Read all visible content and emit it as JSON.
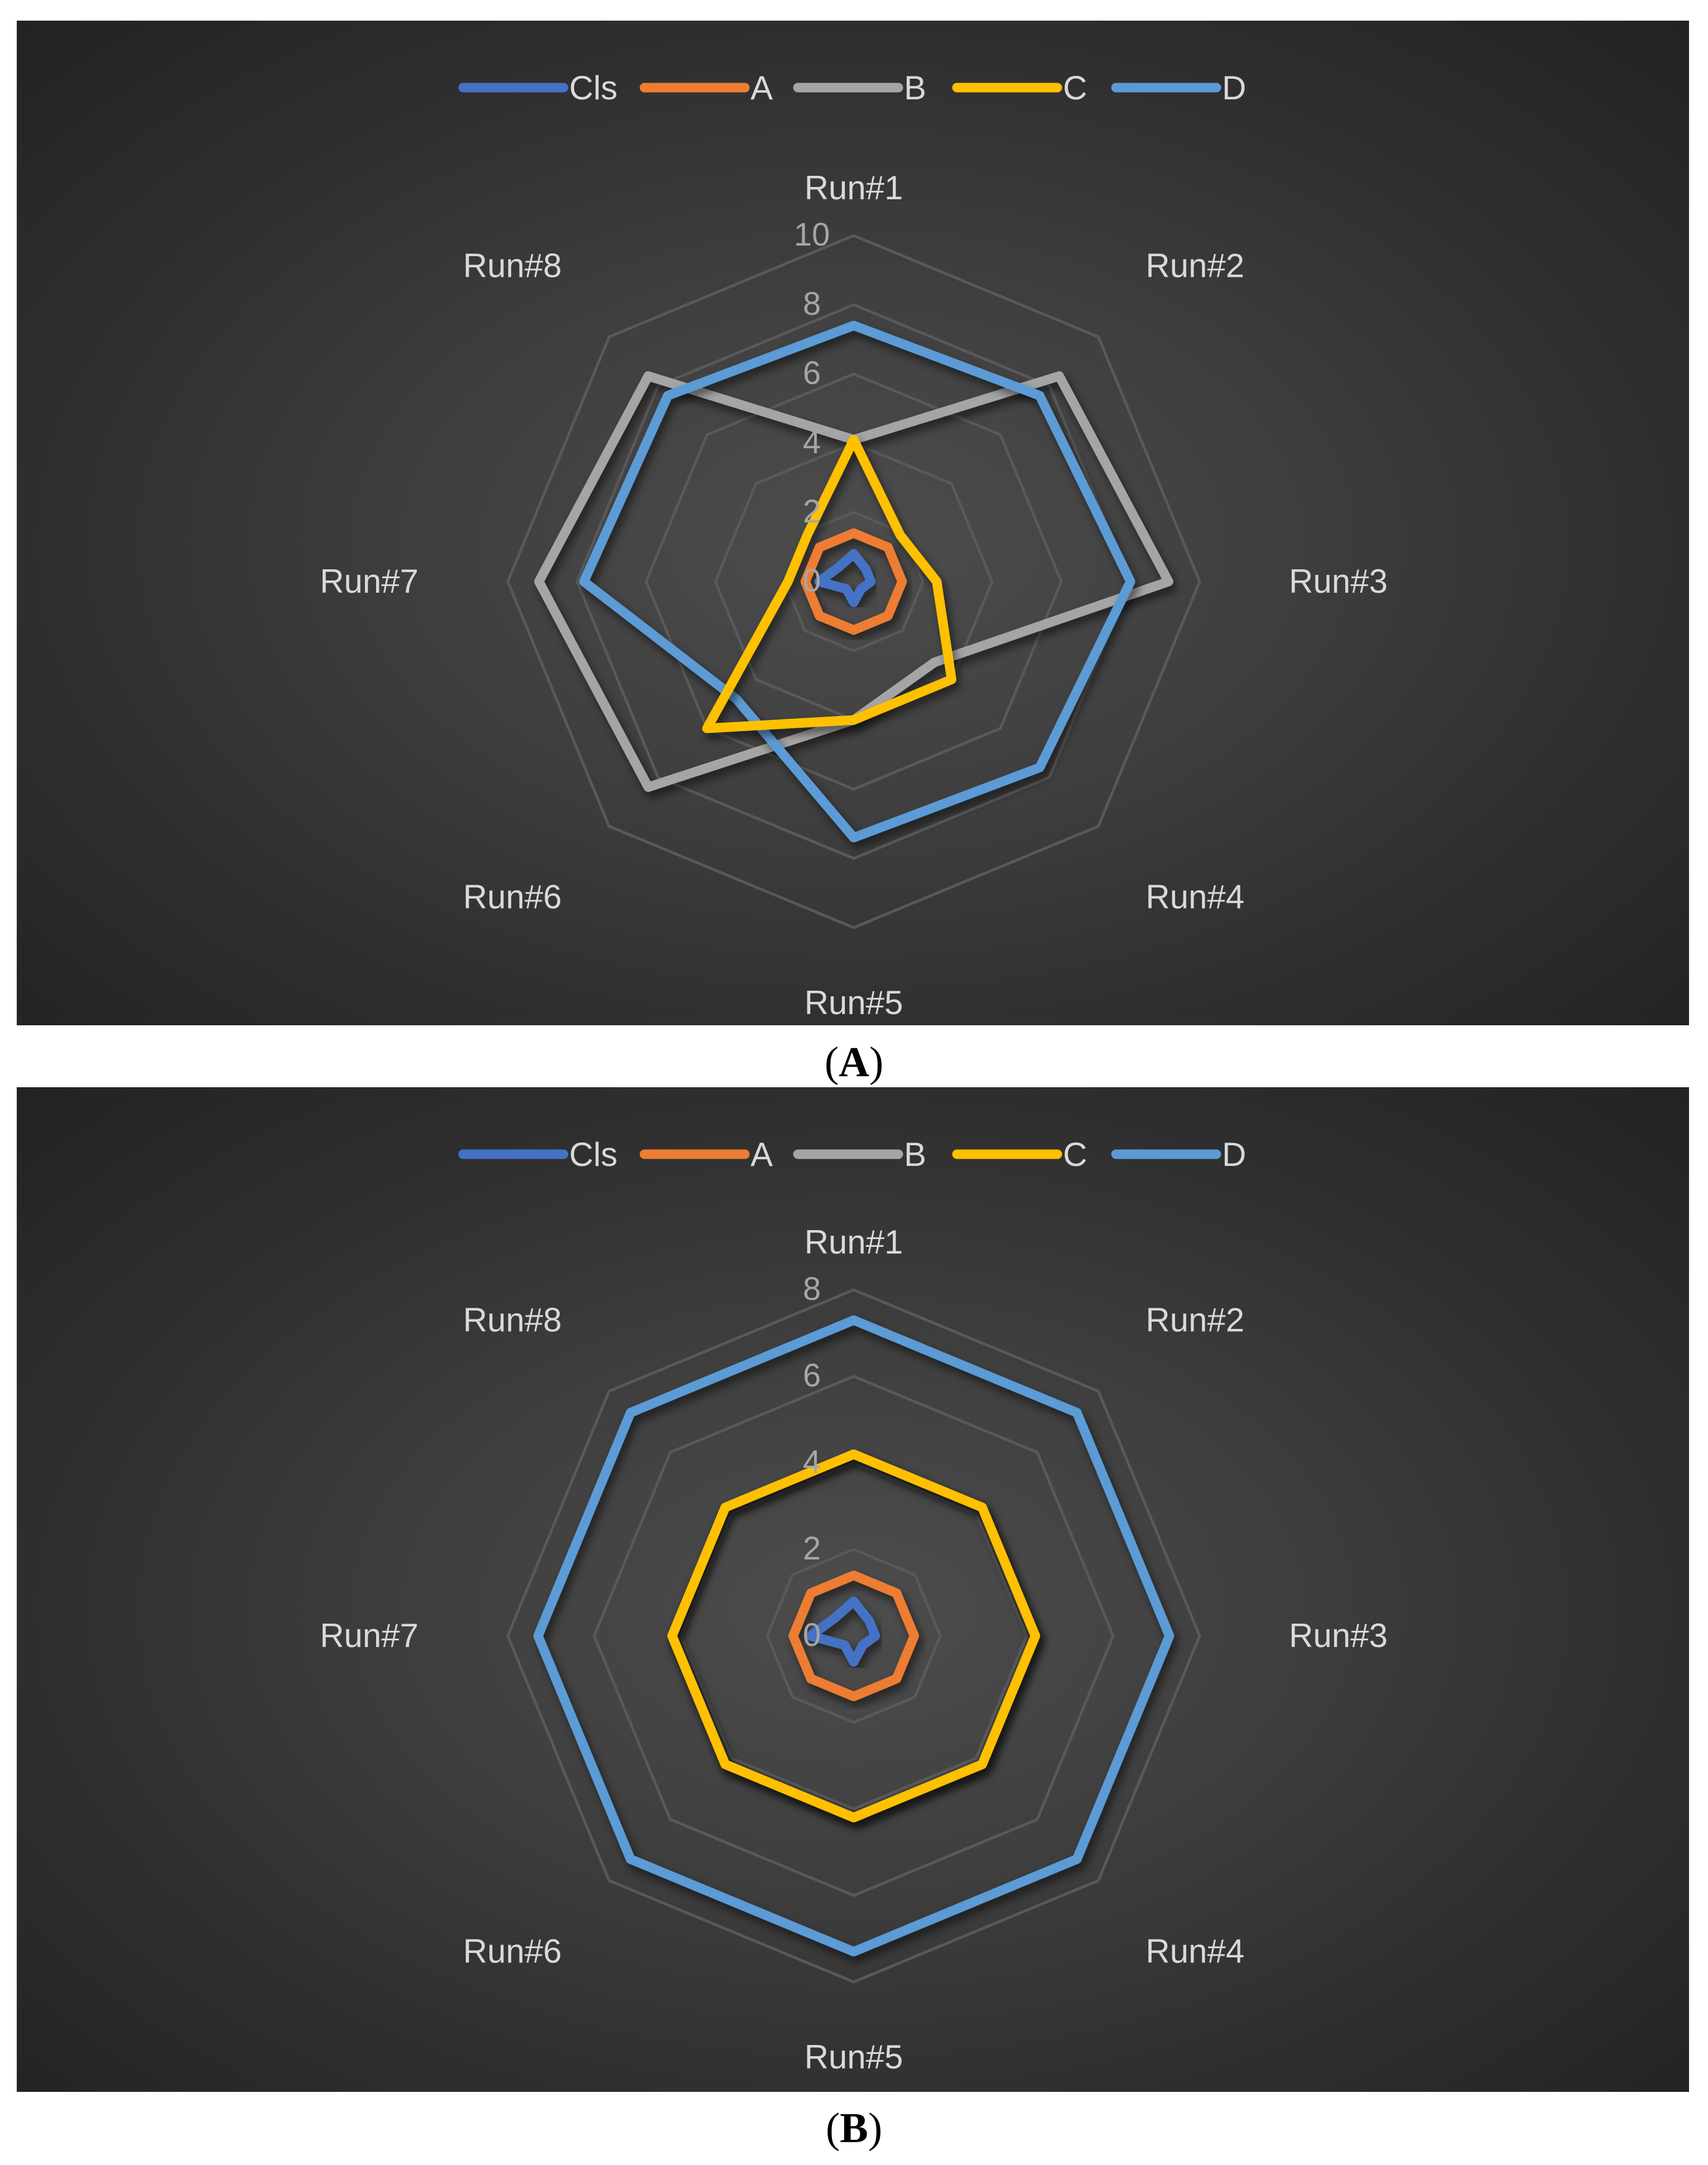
{
  "colors": {
    "Cls": "#4472c4",
    "A": "#ed7d31",
    "B": "#a5a5a5",
    "C": "#ffc000",
    "D": "#5b9bd5",
    "grid": "#595959",
    "text": "#d9d9d9",
    "tick_text": "#a6a6a6"
  },
  "captions": [
    {
      "open": "(",
      "letter": "A",
      "close": ")"
    },
    {
      "open": "(",
      "letter": "B",
      "close": ")"
    }
  ],
  "chart_data": [
    {
      "type": "radar",
      "categories": [
        "Run#1",
        "Run#2",
        "Run#3",
        "Run#4",
        "Run#5",
        "Run#6",
        "Run#7",
        "Run#8"
      ],
      "rlim": [
        0,
        10
      ],
      "ticks": [
        0,
        2,
        4,
        6,
        8,
        10
      ],
      "grid": true,
      "legend_position": "top",
      "series": [
        {
          "name": "Cls",
          "values": [
            0.8,
            0.5,
            0.5,
            0.3,
            0.6,
            0.3,
            1.0,
            0.6
          ]
        },
        {
          "name": "A",
          "values": [
            1.4,
            1.4,
            1.4,
            1.4,
            1.4,
            1.4,
            1.4,
            1.4
          ]
        },
        {
          "name": "B",
          "values": [
            4.1,
            8.4,
            9.1,
            3.3,
            4.0,
            8.4,
            9.1,
            8.4
          ]
        },
        {
          "name": "C",
          "values": [
            4.1,
            1.9,
            2.4,
            4.0,
            4.0,
            6.0,
            1.9,
            1.9
          ]
        },
        {
          "name": "D",
          "values": [
            7.4,
            7.6,
            8.0,
            7.6,
            7.4,
            4.8,
            7.8,
            7.6
          ]
        }
      ]
    },
    {
      "type": "radar",
      "categories": [
        "Run#1",
        "Run#2",
        "Run#3",
        "Run#4",
        "Run#5",
        "Run#6",
        "Run#7",
        "Run#8"
      ],
      "rlim": [
        0,
        8
      ],
      "ticks": [
        0,
        2,
        4,
        6,
        8
      ],
      "grid": true,
      "legend_position": "top",
      "series": [
        {
          "name": "Cls",
          "values": [
            0.8,
            0.5,
            0.5,
            0.3,
            0.6,
            0.3,
            1.0,
            0.6
          ]
        },
        {
          "name": "A",
          "values": [
            1.4,
            1.4,
            1.4,
            1.4,
            1.4,
            1.4,
            1.4,
            1.4
          ]
        },
        {
          "name": "B",
          "values": [
            4.2,
            4.2,
            4.2,
            4.2,
            4.2,
            4.2,
            4.2,
            4.2
          ]
        },
        {
          "name": "C",
          "values": [
            4.2,
            4.2,
            4.2,
            4.2,
            4.2,
            4.2,
            4.2,
            4.2
          ]
        },
        {
          "name": "D",
          "values": [
            7.3,
            7.3,
            7.3,
            7.3,
            7.3,
            7.3,
            7.3,
            7.3
          ]
        }
      ]
    }
  ]
}
